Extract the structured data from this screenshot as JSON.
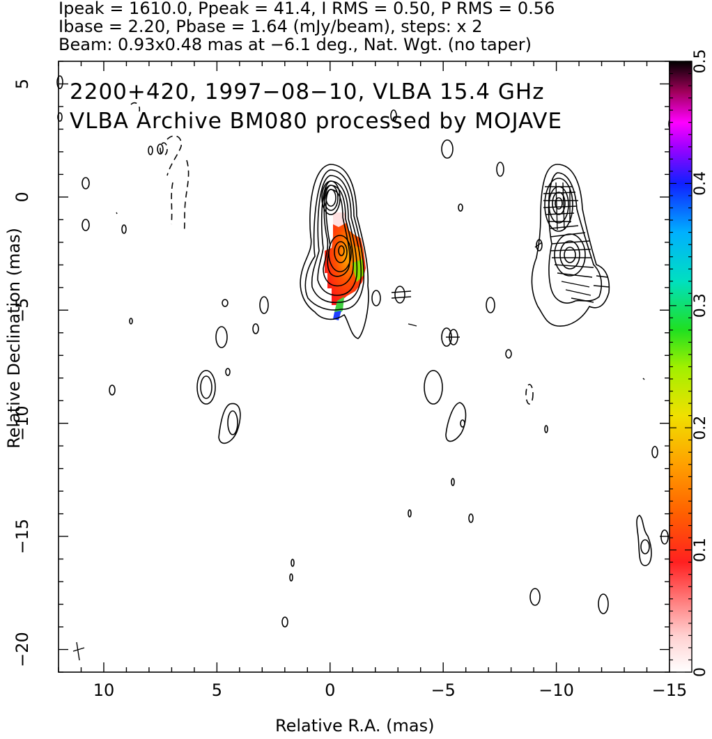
{
  "header": {
    "line1": "Ipeak = 1610.0, Ppeak = 41.4, I RMS = 0.50, P RMS = 0.56",
    "line2": "Ibase = 2.20, Pbase = 1.64 (mJy/beam), steps: x 2",
    "line3": "Beam: 0.93x0.48 mas at −6.1 deg., Nat. Wgt. (no taper)"
  },
  "overlay": {
    "title_line1": "2200+420, 1997−08−10, VLBA 15.4 GHz",
    "title_line2": "VLBA Archive BM080 processed by MOJAVE"
  },
  "chart_data": {
    "type": "heatmap",
    "xlabel": "Relative R.A. (mas)",
    "ylabel": "Relative Declination (mas)",
    "xlim": [
      12,
      -15
    ],
    "ylim": [
      -21,
      6
    ],
    "xticks": [
      10,
      5,
      0,
      -5,
      -10,
      -15
    ],
    "xtick_labels": [
      "10",
      "5",
      "0",
      "−5",
      "−10",
      "−15"
    ],
    "yticks": [
      5,
      0,
      -5,
      -10,
      -15,
      -20
    ],
    "ytick_labels": [
      "5",
      "0",
      "−5",
      "−10",
      "−15",
      "−20"
    ],
    "colorbar": {
      "range": [
        0,
        0.5
      ],
      "ticks": [
        0,
        0.1,
        0.2,
        0.3,
        0.4,
        0.5
      ],
      "tick_labels": [
        "0",
        "0.1",
        "0.2",
        "0.3",
        "0.4",
        "0.5"
      ]
    },
    "core_position": [
      0,
      0
    ],
    "jet_component": [
      -0.5,
      -2.4
    ]
  }
}
